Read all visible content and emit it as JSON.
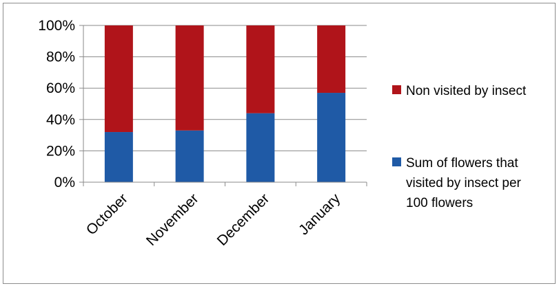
{
  "chart_data": {
    "type": "bar",
    "stacked": true,
    "percent_stacked": true,
    "categories": [
      "October",
      "November",
      "December",
      "January"
    ],
    "series": [
      {
        "name": "Sum of flowers that visited by insect per 100 flowers",
        "legend_lines": [
          "Sum of flowers that",
          "visited by insect per",
          "100 flowers"
        ],
        "color": "#1f5aa6",
        "values": [
          32,
          33,
          44,
          57
        ]
      },
      {
        "name": "Non visited by insect",
        "legend_lines": [
          "Non visited by insect"
        ],
        "color": "#b0141a",
        "values": [
          68,
          67,
          56,
          43
        ]
      }
    ],
    "yticks": [
      "0%",
      "20%",
      "40%",
      "60%",
      "80%",
      "100%"
    ],
    "ylim": [
      0,
      100
    ],
    "grid": true,
    "legend_position": "right"
  }
}
